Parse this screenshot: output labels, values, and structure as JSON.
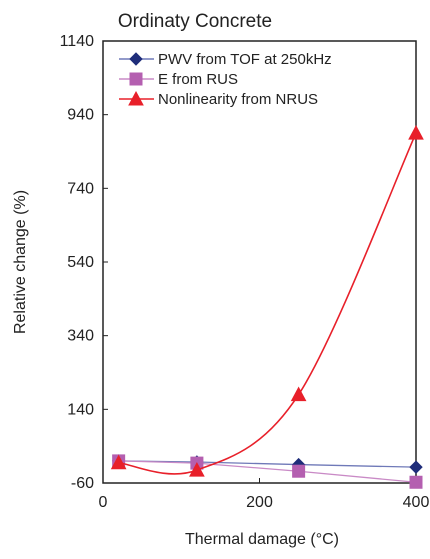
{
  "chart_data": {
    "type": "line",
    "title": "Ordinaty Concrete",
    "xlabel": "Thermal damage (°C)",
    "ylabel": "Relative change (%)",
    "xlim": [
      0,
      400
    ],
    "ylim": [
      -60,
      1140
    ],
    "xticks": [
      0,
      200,
      400
    ],
    "yticks": [
      -60,
      140,
      340,
      540,
      740,
      940,
      1140
    ],
    "grid": false,
    "legend_position": "top-left",
    "series": [
      {
        "name": "PWV from TOF at 250kHz",
        "marker": "diamond",
        "color": "#1f2d7a",
        "line_color": "#6f79b8",
        "x": [
          20,
          120,
          250,
          400
        ],
        "y": [
          0,
          -3,
          -10,
          -17
        ]
      },
      {
        "name": "E from RUS",
        "marker": "square",
        "color": "#b45fb0",
        "line_color": "#c98ac6",
        "x": [
          20,
          120,
          250,
          400
        ],
        "y": [
          0,
          -6,
          -28,
          -58
        ]
      },
      {
        "name": "Nonlinearity from NRUS",
        "marker": "triangle",
        "color": "#e8202a",
        "line_color": "#e8202a",
        "x": [
          20,
          120,
          250,
          400
        ],
        "y": [
          -5,
          -25,
          180,
          890
        ]
      }
    ]
  }
}
